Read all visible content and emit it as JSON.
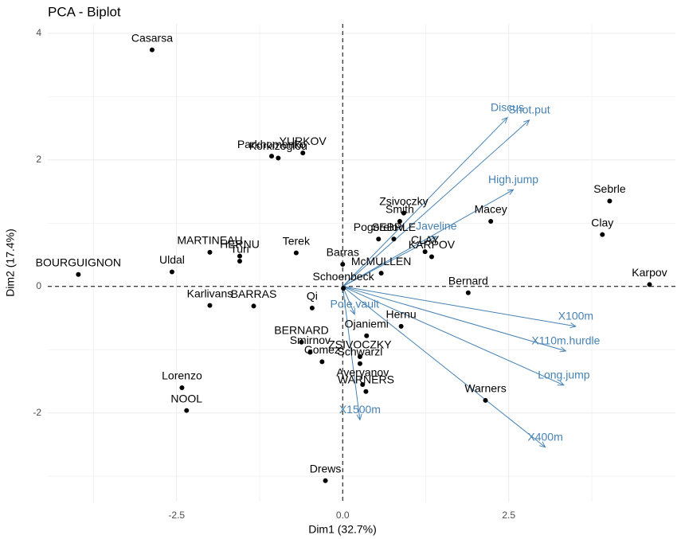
{
  "chart_data": {
    "type": "biplot",
    "title": "PCA - Biplot",
    "x_label": "Dim1 (32.7%)",
    "y_label": "Dim2 (17.4%)",
    "xlim": [
      -4.44,
      5.01
    ],
    "ylim": [
      -3.4,
      4.15
    ],
    "xticks": [
      -2.5,
      {
        "value": 0,
        "label": "0.0"
      },
      2.5
    ],
    "yticks": [
      -2,
      0,
      2,
      4
    ],
    "grid": true,
    "individuals": {
      "color": "#000000",
      "labels": [
        "Casarsa",
        "YURKOV",
        "Parkhomenko",
        "Korkizoglou",
        "Sebrle",
        "Clay",
        "Karpov",
        "Macey",
        "Zsivoczky",
        "Smith",
        "Pogorelov",
        "SEBRLE",
        "CLAY",
        "KARPOV",
        "MARTINEAU",
        "HERNU",
        "Turi",
        "Terek",
        "Barras",
        "McMULLEN",
        "BOURGUIGNON",
        "Uldal",
        "Schoenbeck",
        "Bernard",
        "Karlivans",
        "BARRAS",
        "Qi",
        "Hernu",
        "Ojaniemi",
        "BERNARD",
        "Smirnov",
        "ZSIVOCZKY",
        "Gomez",
        "Schwarzl",
        "Averyanov",
        "WARNERS",
        "Warners",
        "Lorenzo",
        "NOOL",
        "Drews"
      ],
      "x": [
        -2.87,
        -0.6,
        -1.07,
        -0.97,
        4.02,
        3.91,
        4.62,
        2.23,
        0.92,
        0.86,
        0.54,
        0.77,
        1.24,
        1.34,
        -2.0,
        -1.55,
        -1.55,
        -0.7,
        0.0,
        0.58,
        -3.98,
        -2.57,
        0.01,
        1.89,
        -2.0,
        -1.34,
        -0.46,
        0.88,
        0.36,
        -0.62,
        -0.49,
        0.26,
        -0.31,
        0.26,
        0.3,
        0.35,
        2.15,
        -2.42,
        -2.35,
        -0.26
      ],
      "y": [
        3.74,
        2.11,
        2.06,
        2.03,
        1.35,
        0.82,
        0.03,
        1.03,
        1.16,
        1.03,
        0.75,
        0.75,
        0.55,
        0.47,
        0.54,
        0.48,
        0.4,
        0.53,
        0.35,
        0.21,
        0.19,
        0.23,
        -0.03,
        -0.1,
        -0.3,
        -0.31,
        -0.34,
        -0.63,
        -0.78,
        -0.88,
        -1.04,
        -1.11,
        -1.19,
        -1.22,
        -1.55,
        -1.66,
        -1.8,
        -1.6,
        -1.96,
        -3.07
      ]
    },
    "variables": {
      "color": "#4682B4",
      "labels": [
        "Discus",
        "Shot.put",
        "High.jump",
        "Javeline",
        "Pole.vault",
        "X100m",
        "X110m.hurdle",
        "Long.jump",
        "X400m",
        "X1500m"
      ],
      "x": [
        2.48,
        2.81,
        2.57,
        1.41,
        0.18,
        3.51,
        3.36,
        3.33,
        3.05,
        0.26
      ],
      "y": [
        2.67,
        2.63,
        1.53,
        0.79,
        -0.44,
        -0.63,
        -1.02,
        -1.56,
        -2.54,
        -2.11
      ]
    }
  }
}
